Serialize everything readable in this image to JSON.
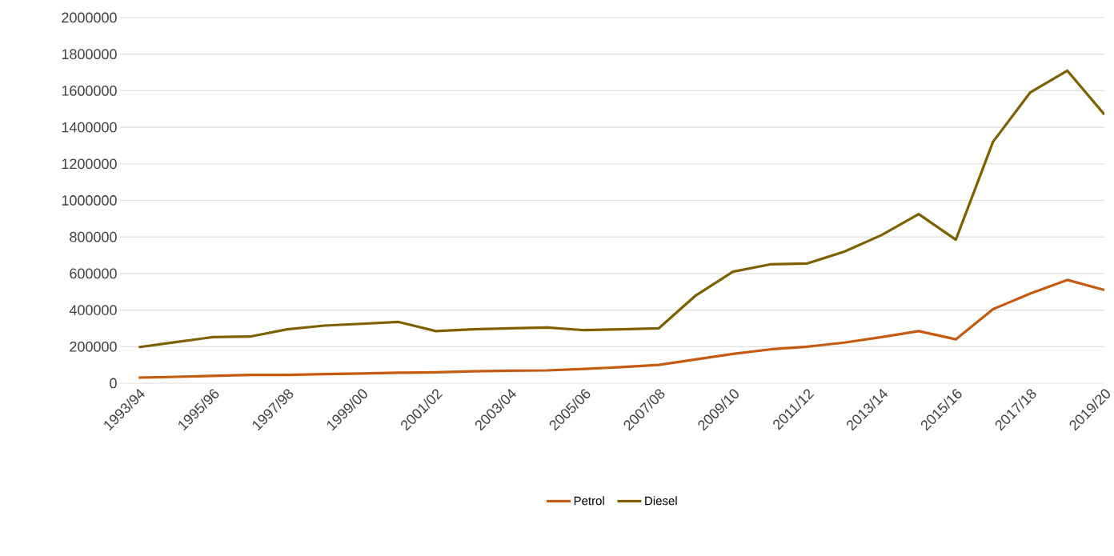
{
  "chart_data": {
    "type": "line",
    "categories": [
      "1993/94",
      null,
      "1995/96",
      null,
      "1997/98",
      null,
      "1999/00",
      null,
      "2001/02",
      null,
      "2003/04",
      null,
      "2005/06",
      null,
      "2007/08",
      null,
      "2009/10",
      null,
      "2011/12",
      null,
      "2013/14",
      null,
      "2015/16",
      null,
      "2017/18",
      null,
      "2019/20"
    ],
    "series": [
      {
        "name": "Petrol",
        "color": "#c55a11",
        "values": [
          30000,
          35000,
          40000,
          45000,
          45000,
          50000,
          53000,
          57000,
          60000,
          65000,
          68000,
          70000,
          78000,
          88000,
          100000,
          130000,
          160000,
          185000,
          200000,
          222000,
          252000,
          285000,
          240000,
          405000,
          490000,
          565000,
          510000
        ]
      },
      {
        "name": "Diesel",
        "color": "#7f6000",
        "values": [
          197000,
          225000,
          252000,
          255000,
          295000,
          315000,
          325000,
          335000,
          285000,
          295000,
          300000,
          305000,
          290000,
          295000,
          300000,
          480000,
          610000,
          650000,
          655000,
          720000,
          810000,
          925000,
          785000,
          1320000,
          1590000,
          1710000,
          1470000
        ]
      }
    ],
    "ylim": [
      0,
      2000000
    ],
    "yticks": [
      0,
      200000,
      400000,
      600000,
      800000,
      1000000,
      1200000,
      1400000,
      1600000,
      1800000,
      2000000
    ],
    "grid": "y",
    "legend": "bottom",
    "marker": "none",
    "line_style": "solid"
  }
}
